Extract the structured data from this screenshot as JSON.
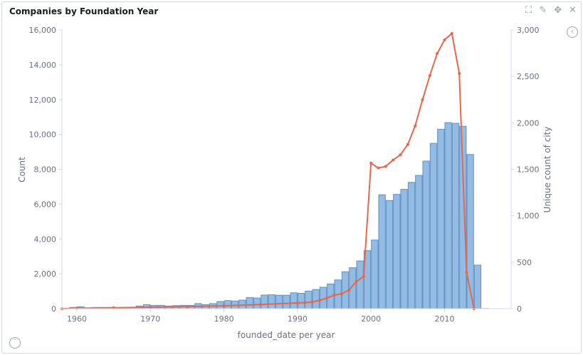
{
  "panel": {
    "title": "Companies by Foundation Year",
    "icons": [
      "fullscreen-icon",
      "pencil-icon",
      "move-icon",
      "close-icon"
    ],
    "legend_toggle_icon": "chevron-left-circle-icon",
    "axis_toggle_icon": "chevron-up-circle-icon"
  },
  "chart_data": {
    "type": "bar+line",
    "title": "Companies by Foundation Year",
    "xlabel": "founded_date per year",
    "ylabel_left": "Count",
    "ylabel_right": "Unique count of city",
    "xlim": [
      1958,
      2016
    ],
    "ylim_left": [
      0,
      16000
    ],
    "ylim_right": [
      0,
      3000
    ],
    "x_ticks": [
      "1960",
      "1970",
      "1980",
      "1990",
      "2000",
      "2010"
    ],
    "y_ticks_left": [
      "0",
      "2,000",
      "4,000",
      "6,000",
      "8,000",
      "10,000",
      "12,000",
      "14,000",
      "16,000"
    ],
    "y_ticks_right": [
      "0",
      "500",
      "1,000",
      "1,500",
      "2,000",
      "2,500",
      "3,000"
    ],
    "grid": false,
    "colors": {
      "bars": "#6092c0",
      "bar_fill": "#88b4e0",
      "line": "#e7664c"
    },
    "series": [
      {
        "name": "Count",
        "type": "bar",
        "axis": "left",
        "x": [
          1959,
          1960,
          1961,
          1962,
          1963,
          1964,
          1965,
          1966,
          1967,
          1968,
          1969,
          1970,
          1971,
          1972,
          1973,
          1974,
          1975,
          1976,
          1977,
          1978,
          1979,
          1980,
          1981,
          1982,
          1983,
          1984,
          1985,
          1986,
          1987,
          1988,
          1989,
          1990,
          1991,
          1992,
          1993,
          1994,
          1995,
          1996,
          1997,
          1998,
          1999,
          2000,
          2001,
          2002,
          2003,
          2004,
          2005,
          2006,
          2007,
          2008,
          2009,
          2010,
          2011,
          2012,
          2013,
          2014,
          2015
        ],
        "values": [
          70,
          110,
          40,
          70,
          70,
          70,
          60,
          60,
          80,
          150,
          230,
          190,
          190,
          150,
          175,
          190,
          190,
          290,
          230,
          290,
          410,
          460,
          440,
          490,
          640,
          610,
          780,
          800,
          770,
          770,
          910,
          880,
          1010,
          1100,
          1230,
          1420,
          1650,
          2120,
          2350,
          2740,
          3330,
          3940,
          6540,
          6210,
          6560,
          6850,
          7250,
          7650,
          8470,
          9490,
          10300,
          10680,
          10640,
          10470,
          8850,
          2500,
          10
        ]
      },
      {
        "name": "Unique count of city",
        "type": "line",
        "axis": "right",
        "x": [
          1958,
          1960,
          1965,
          1970,
          1975,
          1980,
          1985,
          1990,
          1991,
          1992,
          1993,
          1994,
          1995,
          1996,
          1997,
          1998,
          1999,
          2000,
          2001,
          2002,
          2003,
          2004,
          2005,
          2006,
          2007,
          2008,
          2009,
          2010,
          2011,
          2012,
          2013,
          2014
        ],
        "values": [
          0,
          5,
          10,
          15,
          22,
          31,
          45,
          61,
          64,
          71,
          90,
          113,
          146,
          159,
          200,
          292,
          348,
          1567,
          1514,
          1532,
          1600,
          1657,
          1767,
          1967,
          2248,
          2509,
          2747,
          2893,
          2962,
          2532,
          391,
          0
        ]
      }
    ]
  }
}
